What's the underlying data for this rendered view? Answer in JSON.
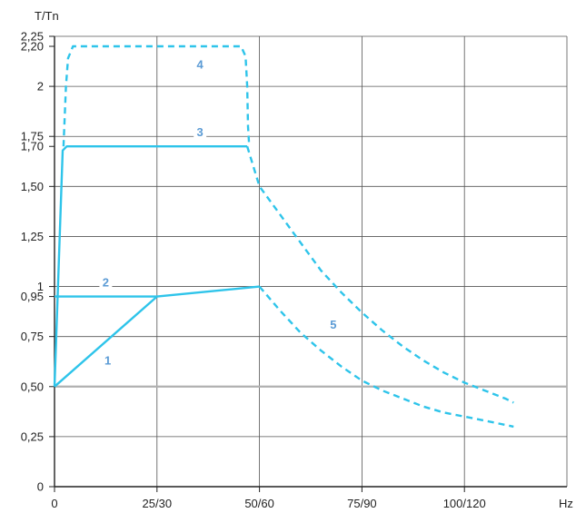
{
  "chart_data": {
    "type": "line",
    "title": "",
    "ylabel": "T/Tn",
    "xlabel": "Hz",
    "x_tick_labels": [
      "0",
      "25/30",
      "50/60",
      "75/90",
      "100/120"
    ],
    "x_ticks": [
      0,
      25,
      50,
      75,
      100
    ],
    "y_tick_labels": [
      "0",
      "0,25",
      "0,50",
      "0,75",
      "0,95",
      "1",
      "1,25",
      "1,50",
      "1,70",
      "1,75",
      "2",
      "2,20",
      "2,25"
    ],
    "y_ticks": [
      0,
      0.25,
      0.5,
      0.75,
      0.95,
      1,
      1.25,
      1.5,
      1.7,
      1.75,
      2,
      2.2,
      2.25
    ],
    "xlim": [
      0,
      125
    ],
    "ylim": [
      0,
      2.25
    ],
    "grid": true,
    "colors": {
      "curve": "#2ec4ea",
      "label": "#5b9bd5",
      "grid": "#555555",
      "highlight_line": "#b0b0b0",
      "axis": "#222222"
    },
    "series": [
      {
        "label": "1",
        "style": "solid",
        "points": [
          [
            0,
            0.5
          ],
          [
            25,
            0.95
          ],
          [
            50,
            1.0
          ]
        ],
        "label_at": [
          13,
          0.61
        ]
      },
      {
        "label": "2",
        "style": "solid",
        "points": [
          [
            0,
            0.95
          ],
          [
            25,
            0.95
          ]
        ],
        "label_at": [
          12.5,
          1.0
        ]
      },
      {
        "label": "3",
        "style": "solid",
        "points": [
          [
            0,
            0.5
          ],
          [
            2,
            1.68
          ],
          [
            3,
            1.7
          ],
          [
            47,
            1.7
          ]
        ],
        "label_at": [
          35.5,
          1.75
        ]
      },
      {
        "label": "4",
        "style": "dashed",
        "points": [
          [
            2.2,
            1.7
          ],
          [
            2.8,
            2.0
          ],
          [
            3.3,
            2.14
          ],
          [
            4.5,
            2.2
          ],
          [
            45.5,
            2.2
          ],
          [
            46.6,
            2.15
          ],
          [
            47,
            2.0
          ],
          [
            47.2,
            1.8
          ],
          [
            47.5,
            1.7
          ]
        ],
        "label_at": [
          35.5,
          2.09
        ]
      },
      {
        "label": "5",
        "style": "dashed",
        "points": [
          [
            47,
            1.7
          ],
          [
            50,
            1.5
          ],
          [
            55,
            1.36
          ],
          [
            60,
            1.22
          ],
          [
            65,
            1.08
          ],
          [
            70,
            0.97
          ],
          [
            75,
            0.87
          ],
          [
            80,
            0.78
          ],
          [
            85,
            0.7
          ],
          [
            90,
            0.63
          ],
          [
            95,
            0.57
          ],
          [
            100,
            0.52
          ],
          [
            105,
            0.48
          ],
          [
            110,
            0.44
          ],
          [
            112,
            0.42
          ]
        ],
        "label_at": [
          68,
          0.79
        ]
      },
      {
        "label": "",
        "style": "dashed",
        "points": [
          [
            50,
            1.0
          ],
          [
            55,
            0.88
          ],
          [
            60,
            0.77
          ],
          [
            65,
            0.68
          ],
          [
            70,
            0.6
          ],
          [
            75,
            0.53
          ],
          [
            80,
            0.48
          ],
          [
            85,
            0.44
          ],
          [
            90,
            0.4
          ],
          [
            95,
            0.37
          ],
          [
            100,
            0.35
          ],
          [
            105,
            0.33
          ],
          [
            112,
            0.3
          ]
        ]
      }
    ]
  }
}
